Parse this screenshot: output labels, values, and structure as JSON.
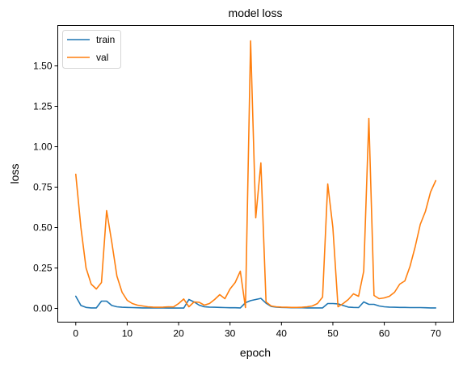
{
  "chart_data": {
    "type": "line",
    "title": "model loss",
    "xlabel": "epoch",
    "ylabel": "loss",
    "xlim": [
      -3.5,
      73.5
    ],
    "ylim": [
      -0.085,
      1.75
    ],
    "xticks": [
      0,
      10,
      20,
      30,
      40,
      50,
      60,
      70
    ],
    "xtick_labels": [
      "0",
      "10",
      "20",
      "30",
      "40",
      "50",
      "60",
      "70"
    ],
    "yticks": [
      0.0,
      0.25,
      0.5,
      0.75,
      1.0,
      1.25,
      1.5
    ],
    "ytick_labels": [
      "0.00",
      "0.25",
      "0.50",
      "0.75",
      "1.00",
      "1.25",
      "1.50"
    ],
    "grid": false,
    "legend_position": "top-left",
    "series": [
      {
        "name": "train",
        "color": "#1f77b4",
        "x": [
          0,
          1,
          2,
          3,
          4,
          5,
          6,
          7,
          8,
          9,
          10,
          11,
          12,
          13,
          14,
          15,
          16,
          17,
          18,
          19,
          20,
          21,
          22,
          23,
          24,
          25,
          26,
          27,
          28,
          29,
          30,
          31,
          32,
          33,
          34,
          35,
          36,
          37,
          38,
          39,
          40,
          41,
          42,
          43,
          44,
          45,
          46,
          47,
          48,
          49,
          50,
          51,
          52,
          53,
          54,
          55,
          56,
          57,
          58,
          59,
          60,
          61,
          62,
          63,
          64,
          65,
          66,
          67,
          68,
          69,
          70
        ],
        "values": [
          0.075,
          0.018,
          0.006,
          0.003,
          0.003,
          0.045,
          0.045,
          0.018,
          0.01,
          0.007,
          0.006,
          0.005,
          0.004,
          0.003,
          0.003,
          0.003,
          0.003,
          0.003,
          0.002,
          0.002,
          0.002,
          0.002,
          0.055,
          0.04,
          0.02,
          0.01,
          0.008,
          0.007,
          0.006,
          0.005,
          0.004,
          0.004,
          0.003,
          0.035,
          0.048,
          0.055,
          0.062,
          0.032,
          0.012,
          0.008,
          0.006,
          0.005,
          0.004,
          0.004,
          0.004,
          0.003,
          0.003,
          0.003,
          0.003,
          0.03,
          0.03,
          0.028,
          0.018,
          0.008,
          0.006,
          0.005,
          0.04,
          0.025,
          0.025,
          0.015,
          0.01,
          0.008,
          0.007,
          0.006,
          0.006,
          0.005,
          0.005,
          0.005,
          0.004,
          0.003,
          0.003
        ]
      },
      {
        "name": "val",
        "color": "#ff7f0e",
        "x": [
          0,
          1,
          2,
          3,
          4,
          5,
          6,
          7,
          8,
          9,
          10,
          11,
          12,
          13,
          14,
          15,
          16,
          17,
          18,
          19,
          20,
          21,
          22,
          23,
          24,
          25,
          26,
          27,
          28,
          29,
          30,
          31,
          32,
          33,
          34,
          35,
          36,
          37,
          38,
          39,
          40,
          41,
          42,
          43,
          44,
          45,
          46,
          47,
          48,
          49,
          50,
          51,
          52,
          53,
          54,
          55,
          56,
          57,
          58,
          59,
          60,
          61,
          62,
          63,
          64,
          65,
          66,
          67,
          68,
          69,
          70
        ],
        "values": [
          0.83,
          0.5,
          0.25,
          0.15,
          0.12,
          0.16,
          0.605,
          0.41,
          0.2,
          0.1,
          0.05,
          0.03,
          0.02,
          0.015,
          0.01,
          0.008,
          0.007,
          0.008,
          0.01,
          0.009,
          0.03,
          0.058,
          0.01,
          0.04,
          0.038,
          0.02,
          0.03,
          0.055,
          0.085,
          0.06,
          0.12,
          0.16,
          0.23,
          0.005,
          1.655,
          0.56,
          0.9,
          0.04,
          0.015,
          0.01,
          0.008,
          0.007,
          0.006,
          0.006,
          0.007,
          0.01,
          0.015,
          0.03,
          0.07,
          0.77,
          0.5,
          0.01,
          0.03,
          0.055,
          0.09,
          0.075,
          0.23,
          1.175,
          0.08,
          0.06,
          0.065,
          0.075,
          0.1,
          0.15,
          0.17,
          0.26,
          0.38,
          0.52,
          0.6,
          0.72,
          0.79
        ]
      }
    ]
  }
}
